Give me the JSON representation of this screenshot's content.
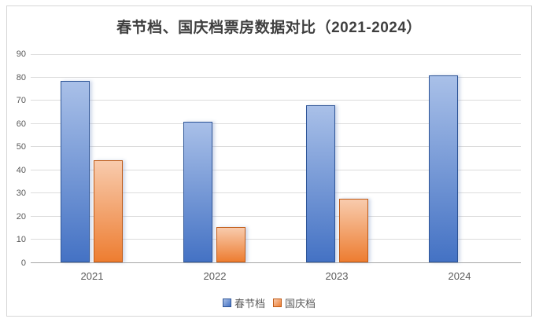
{
  "chart_data": {
    "type": "bar",
    "title": "春节档、国庆档票房数据对比（2021-2024）",
    "categories": [
      "2021",
      "2022",
      "2023",
      "2024"
    ],
    "series": [
      {
        "key": "spring-festival",
        "name": "春节档",
        "values": [
          78.2,
          60.4,
          67.8,
          80.5
        ],
        "color_top": "#a9c0e8",
        "color_bottom": "#4472c4",
        "border_color": "#2e5597"
      },
      {
        "key": "national-day",
        "name": "国庆档",
        "values": [
          44,
          15.3,
          27.4,
          null
        ],
        "color_top": "#f8cbad",
        "color_bottom": "#ed7d31",
        "border_color": "#c05b17"
      }
    ],
    "xlabel": "",
    "ylabel": "",
    "ylim": [
      0,
      90
    ],
    "yticks": [
      0,
      10,
      20,
      30,
      40,
      50,
      60,
      70,
      80,
      90
    ],
    "grid": true,
    "legend_position": "bottom"
  },
  "style": {
    "background": "#ffffff",
    "card_border_color": "#d6d6d6",
    "gridline_color": "#dcdcdc",
    "axis_line_color": "#a6a6a6",
    "tick_label_color": "#595959",
    "title_color": "#3f3f3f"
  }
}
